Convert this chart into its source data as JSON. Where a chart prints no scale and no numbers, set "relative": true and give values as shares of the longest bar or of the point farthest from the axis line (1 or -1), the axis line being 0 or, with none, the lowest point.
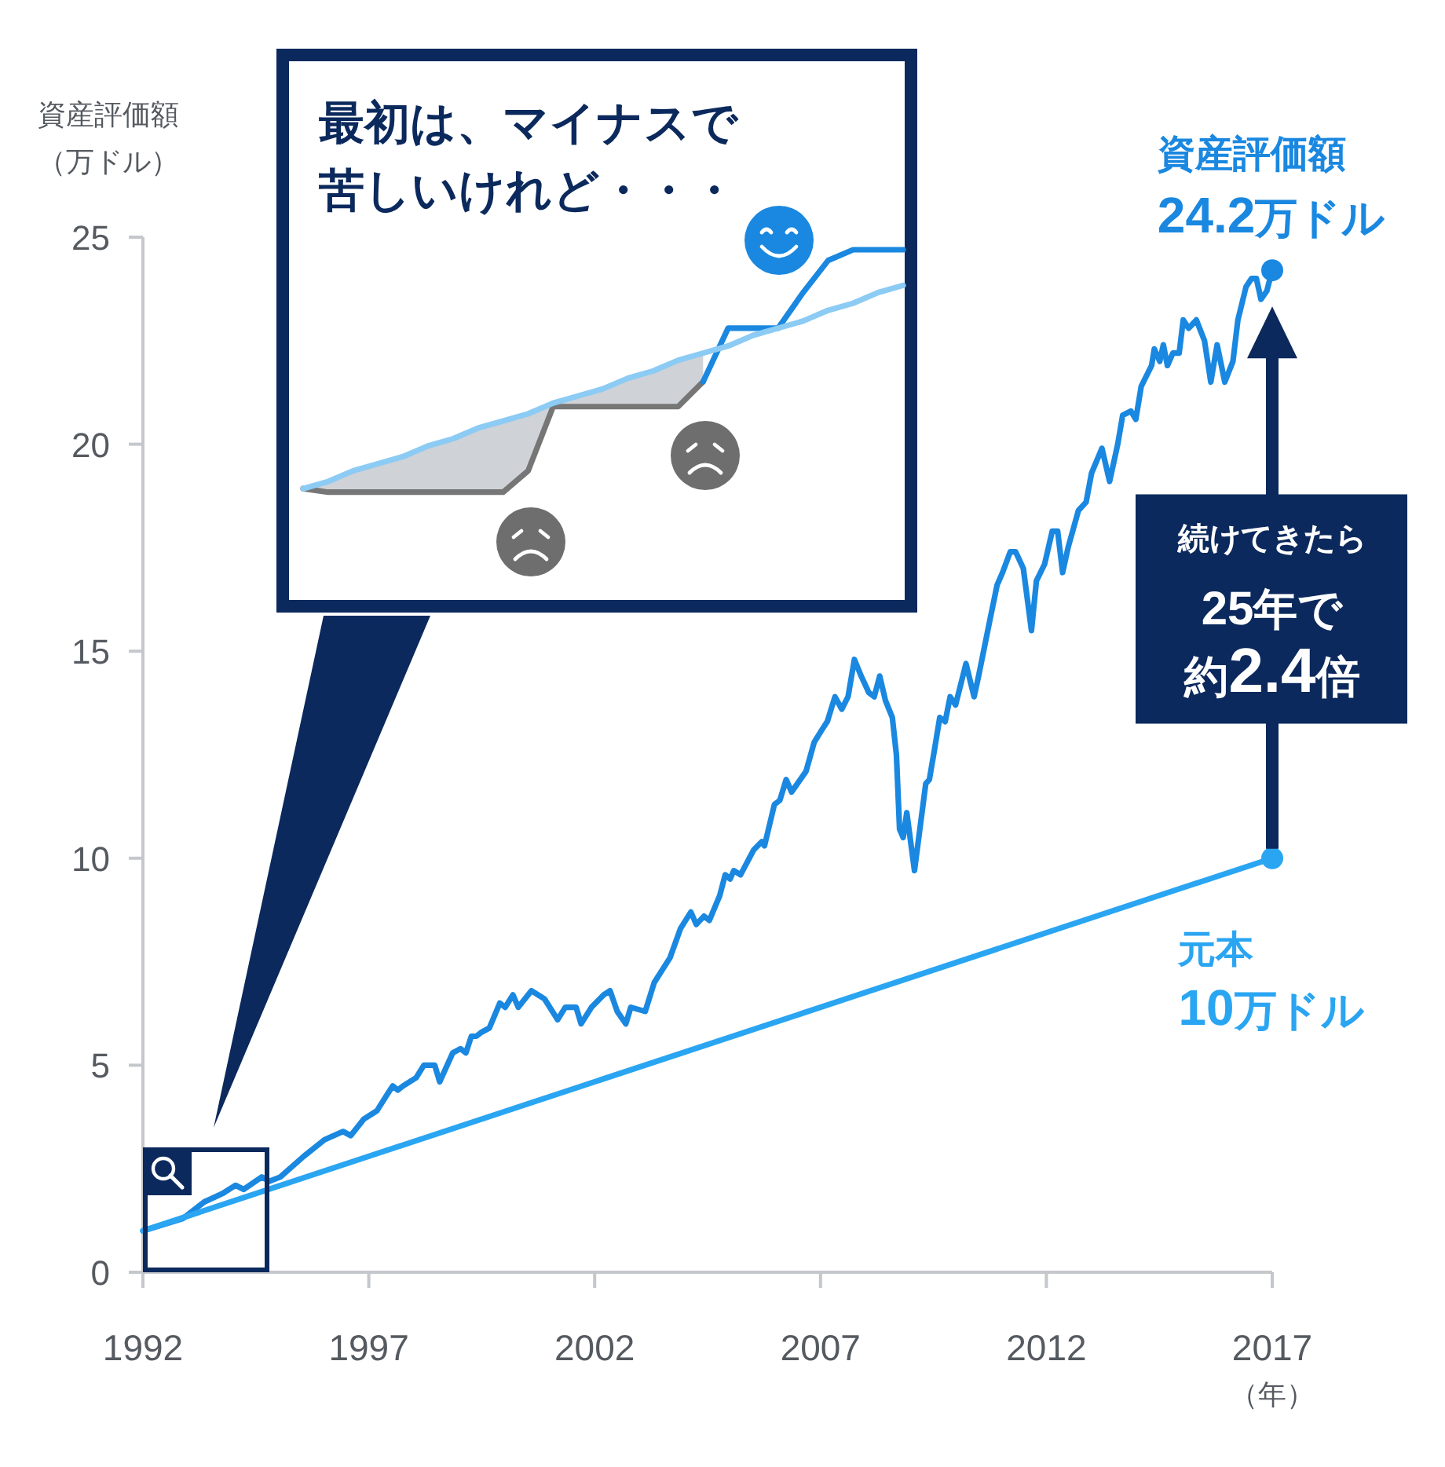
{
  "chart_data": [
    {
      "type": "line",
      "ylabel": "資産評価額（万ドル）",
      "xlabel": "（年）",
      "xlim": [
        1992,
        2017
      ],
      "xticks": [
        1992,
        1997,
        2002,
        2007,
        2012,
        2017
      ],
      "ylim": [
        0,
        25
      ],
      "yticks": [
        0,
        5,
        10,
        15,
        20,
        25
      ],
      "series": [
        {
          "color": "#1a88e0",
          "x": [
            1992,
            1992.89,
            1993.36,
            1993.76,
            1994.05,
            1994.23,
            1994.63,
            1994.8,
            1995.04,
            1995.56,
            1996.02,
            1996.43,
            1996.6,
            1996.89,
            1997.18,
            1997.41,
            1997.53,
            1997.64,
            1997.76,
            1998.05,
            1998.22,
            1998.46,
            1998.57,
            1998.86,
            1999.03,
            1999.15,
            1999.27,
            1999.38,
            1999.5,
            1999.67,
            1999.9,
            2000.02,
            2000.19,
            2000.31,
            2000.6,
            2000.89,
            2001.18,
            2001.35,
            2001.59,
            2001.7,
            2001.93,
            2002.2,
            2002.34,
            2002.5,
            2002.69,
            2002.8,
            2003.12,
            2003.32,
            2003.67,
            2003.9,
            2004.13,
            2004.25,
            2004.42,
            2004.54,
            2004.77,
            2004.89,
            2005.0,
            2005.08,
            2005.23,
            2005.52,
            2005.7,
            2005.76,
            2005.98,
            2006.1,
            2006.24,
            2006.36,
            2006.68,
            2006.86,
            2007.03,
            2007.15,
            2007.32,
            2007.47,
            2007.61,
            2007.75,
            2007.9,
            2008.07,
            2008.19,
            2008.31,
            2008.44,
            2008.59,
            2008.68,
            2008.75,
            2008.83,
            2008.91,
            2009.08,
            2009.33,
            2009.41,
            2009.52,
            2009.64,
            2009.76,
            2009.87,
            2009.99,
            2010.22,
            2010.4,
            2010.5,
            2010.74,
            2010.91,
            2011.03,
            2011.2,
            2011.32,
            2011.49,
            2011.67,
            2011.78,
            2011.96,
            2012.13,
            2012.25,
            2012.36,
            2012.48,
            2012.71,
            2012.88,
            2013.0,
            2013.23,
            2013.4,
            2013.58,
            2013.69,
            2013.87,
            2013.98,
            2014.1,
            2014.33,
            2014.39,
            2014.51,
            2014.59,
            2014.68,
            2014.8,
            2014.94,
            2015.03,
            2015.15,
            2015.32,
            2015.5,
            2015.64,
            2015.78,
            2015.95,
            2016.13,
            2016.24,
            2016.42,
            2016.54,
            2016.65,
            2016.75,
            2016.88,
            2017
          ],
          "values": [
            1.0,
            1.3,
            1.7,
            1.9,
            2.1,
            2.0,
            2.3,
            2.2,
            2.3,
            2.8,
            3.2,
            3.4,
            3.3,
            3.7,
            3.9,
            4.3,
            4.5,
            4.4,
            4.5,
            4.7,
            5.0,
            5.0,
            4.6,
            5.3,
            5.4,
            5.3,
            5.7,
            5.7,
            5.8,
            5.9,
            6.5,
            6.4,
            6.7,
            6.4,
            6.8,
            6.6,
            6.1,
            6.4,
            6.4,
            6.0,
            6.4,
            6.7,
            6.8,
            6.3,
            6.0,
            6.4,
            6.3,
            7.0,
            7.6,
            8.3,
            8.7,
            8.4,
            8.6,
            8.5,
            9.1,
            9.6,
            9.5,
            9.7,
            9.6,
            10.2,
            10.4,
            10.3,
            11.3,
            11.4,
            11.9,
            11.6,
            12.1,
            12.8,
            13.1,
            13.3,
            13.9,
            13.6,
            13.9,
            14.8,
            14.4,
            14.0,
            13.9,
            14.4,
            13.8,
            13.4,
            12.5,
            10.7,
            10.5,
            11.1,
            9.7,
            11.8,
            11.9,
            12.6,
            13.4,
            13.3,
            13.9,
            13.7,
            14.7,
            13.9,
            14.4,
            15.7,
            16.6,
            16.9,
            17.4,
            17.4,
            17.0,
            15.5,
            16.7,
            17.1,
            17.9,
            17.9,
            16.9,
            17.5,
            18.4,
            18.6,
            19.3,
            19.9,
            19.1,
            20.0,
            20.7,
            20.8,
            20.6,
            21.4,
            21.9,
            22.3,
            22.0,
            22.4,
            21.9,
            22.2,
            22.2,
            23.0,
            22.8,
            23.0,
            22.5,
            21.5,
            22.4,
            21.5,
            22.0,
            23.0,
            23.8,
            24.0,
            24.0,
            23.5,
            23.7,
            24.2
          ]
        },
        {
          "color": "#2aa5f2",
          "x": [
            1992,
            2017
          ],
          "values": [
            1,
            10
          ]
        }
      ],
      "annotations": [
        {
          "text": "資産評価額\n24.2万ドル",
          "x": 2017,
          "y": 24.2
        },
        {
          "text": "元本\n10万ドル",
          "x": 2017,
          "y": 10
        },
        "続けてきたら\n25年で約2.4倍"
      ]
    },
    {
      "type": "line",
      "relative": true,
      "categories": [
        null,
        null,
        null,
        null,
        null,
        null,
        null,
        null,
        null,
        null,
        null,
        null,
        null,
        null,
        null,
        null,
        null,
        null,
        null,
        null,
        null,
        null,
        null,
        null,
        null
      ],
      "series": [
        {
          "color": "#767676",
          "values": [
            0.33,
            0.32,
            0.32,
            0.32,
            0.32,
            0.32,
            0.32,
            0.32,
            0.32,
            0.38,
            0.56,
            0.56,
            0.56,
            0.56,
            0.56,
            0.56,
            0.63,
            null,
            null,
            null,
            null,
            null,
            null,
            null,
            null
          ],
          "lower": [
            0.33,
            0.32,
            0.32,
            0.32,
            0.32,
            0.32,
            0.32,
            0.32,
            0.32,
            0.38,
            0.56,
            0.56,
            0.56,
            0.56,
            0.56,
            0.56,
            0.63,
            null,
            null,
            null,
            null,
            null,
            null,
            null,
            null
          ],
          "upper": [
            0.33,
            0.35,
            0.38,
            0.4,
            0.42,
            0.45,
            0.47,
            0.5,
            0.52,
            0.54,
            0.57,
            0.59,
            0.61,
            0.64,
            0.66,
            0.69,
            0.71,
            null,
            null,
            null,
            null,
            null,
            null,
            null,
            null
          ]
        },
        {
          "color": "#1a88e0",
          "values": [
            null,
            null,
            null,
            null,
            null,
            null,
            null,
            null,
            null,
            null,
            null,
            null,
            null,
            null,
            null,
            null,
            0.63,
            0.78,
            0.78,
            0.78,
            0.88,
            0.97,
            1,
            1,
            1
          ]
        },
        {
          "color": "#8ccbf4",
          "values": [
            0.33,
            0.35,
            0.38,
            0.4,
            0.42,
            0.45,
            0.47,
            0.5,
            0.52,
            0.54,
            0.57,
            0.59,
            0.61,
            0.64,
            0.66,
            0.69,
            0.71,
            0.73,
            0.76,
            0.78,
            0.8,
            0.83,
            0.85,
            0.88,
            0.9
          ]
        }
      ],
      "annotations": [
        "最初は、マイナスで苦しいけれど・・・"
      ]
    }
  ]
}
